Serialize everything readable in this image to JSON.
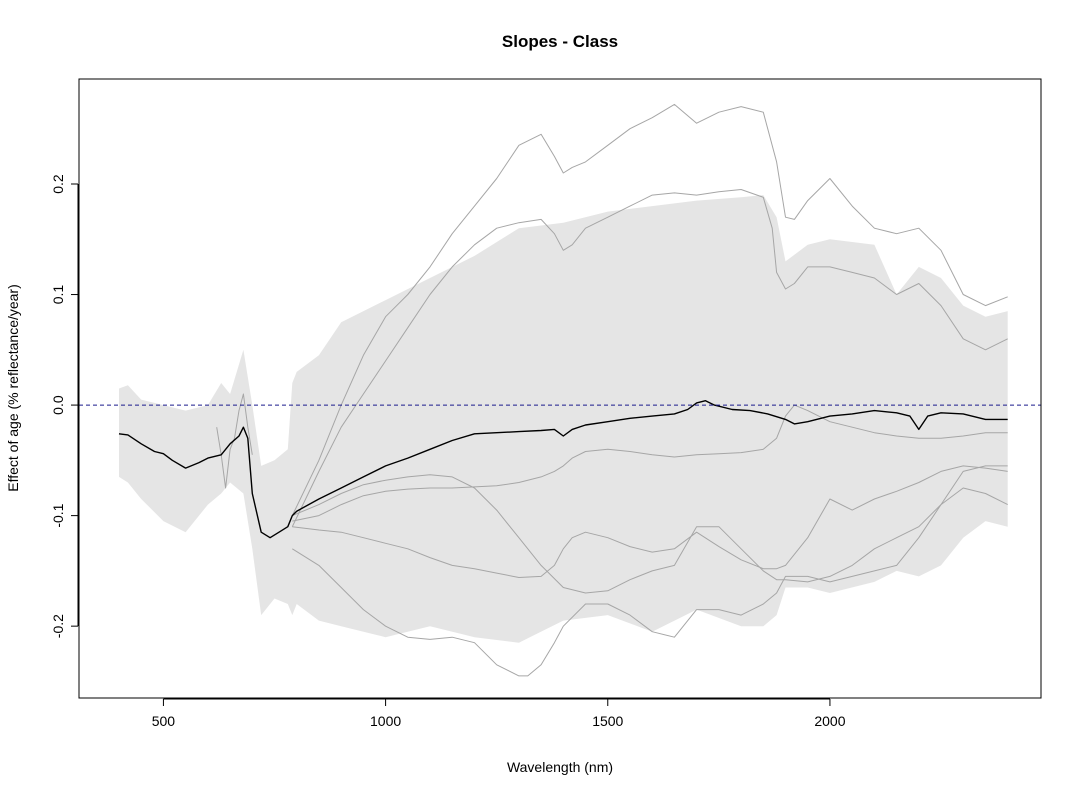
{
  "chart_data": {
    "type": "line",
    "title": "Slopes - Class",
    "xlabel": "Wavelength (nm)",
    "ylabel": "Effect of age (% reflectance/year)",
    "xlim": [
      310,
      2475
    ],
    "ylim": [
      -0.265,
      0.295
    ],
    "xticks": [
      500,
      1000,
      1500,
      2000
    ],
    "xtick_labels": [
      "500",
      "1000",
      "1500",
      "2000"
    ],
    "yticks": [
      -0.2,
      -0.1,
      0.0,
      0.1,
      0.2
    ],
    "ytick_labels": [
      "-0.2",
      "-0.1",
      "0.0",
      "0.1",
      "0.2"
    ],
    "reference_line": {
      "y": 0.0,
      "style": "dashed",
      "color": "#1a1a8c"
    },
    "colors": {
      "band": "#e5e5e5",
      "series": "#000000",
      "gray_lines": "#a6a6a6"
    },
    "band": {
      "name": "",
      "x": [
        400,
        420,
        450,
        500,
        550,
        600,
        630,
        650,
        680,
        700,
        720,
        750,
        780,
        790,
        800,
        850,
        900,
        1000,
        1100,
        1200,
        1300,
        1400,
        1500,
        1600,
        1700,
        1800,
        1850,
        1880,
        1900,
        1950,
        2000,
        2100,
        2150,
        2200,
        2250,
        2300,
        2350,
        2400
      ],
      "upper": [
        0.015,
        0.018,
        0.005,
        0.0,
        -0.005,
        0.0,
        0.02,
        0.01,
        0.05,
        0.0,
        -0.055,
        -0.05,
        -0.04,
        0.02,
        0.03,
        0.045,
        0.075,
        0.095,
        0.115,
        0.135,
        0.16,
        0.165,
        0.175,
        0.18,
        0.185,
        0.188,
        0.19,
        0.17,
        0.13,
        0.145,
        0.15,
        0.145,
        0.1,
        0.125,
        0.115,
        0.09,
        0.08,
        0.085
      ],
      "lower": [
        -0.065,
        -0.07,
        -0.085,
        -0.105,
        -0.115,
        -0.09,
        -0.08,
        -0.07,
        -0.08,
        -0.13,
        -0.19,
        -0.175,
        -0.18,
        -0.19,
        -0.18,
        -0.195,
        -0.2,
        -0.21,
        -0.2,
        -0.21,
        -0.215,
        -0.195,
        -0.19,
        -0.205,
        -0.185,
        -0.2,
        -0.2,
        -0.19,
        -0.165,
        -0.165,
        -0.17,
        -0.16,
        -0.15,
        -0.155,
        -0.145,
        -0.12,
        -0.105,
        -0.11
      ]
    },
    "series": [
      {
        "name": "",
        "color": "#000000",
        "x": [
          400,
          420,
          450,
          480,
          500,
          520,
          550,
          580,
          600,
          630,
          650,
          670,
          680,
          690,
          700,
          720,
          740,
          760,
          780,
          790,
          800,
          850,
          900,
          950,
          1000,
          1050,
          1100,
          1150,
          1200,
          1250,
          1300,
          1350,
          1380,
          1400,
          1420,
          1450,
          1500,
          1550,
          1600,
          1650,
          1680,
          1700,
          1720,
          1740,
          1780,
          1820,
          1860,
          1900,
          1920,
          1950,
          2000,
          2050,
          2100,
          2150,
          2180,
          2200,
          2220,
          2250,
          2300,
          2350,
          2400
        ],
        "y": [
          -0.026,
          -0.027,
          -0.035,
          -0.042,
          -0.044,
          -0.05,
          -0.057,
          -0.052,
          -0.048,
          -0.045,
          -0.035,
          -0.028,
          -0.02,
          -0.03,
          -0.08,
          -0.115,
          -0.12,
          -0.115,
          -0.11,
          -0.1,
          -0.096,
          -0.085,
          -0.075,
          -0.065,
          -0.055,
          -0.048,
          -0.04,
          -0.032,
          -0.026,
          -0.025,
          -0.024,
          -0.023,
          -0.022,
          -0.028,
          -0.022,
          -0.018,
          -0.015,
          -0.012,
          -0.01,
          -0.008,
          -0.004,
          0.002,
          0.004,
          0.0,
          -0.004,
          -0.005,
          -0.008,
          -0.013,
          -0.017,
          -0.015,
          -0.01,
          -0.008,
          -0.005,
          -0.007,
          -0.01,
          -0.022,
          -0.01,
          -0.007,
          -0.008,
          -0.013,
          -0.013
        ]
      },
      {
        "name": "",
        "color": "#a6a6a6",
        "x": [
          790,
          850,
          900,
          950,
          1000,
          1050,
          1100,
          1150,
          1200,
          1250,
          1300,
          1350,
          1380,
          1400,
          1420,
          1450,
          1500,
          1550,
          1600,
          1650,
          1700,
          1750,
          1800,
          1850,
          1880,
          1900,
          1920,
          1950,
          2000,
          2050,
          2100,
          2150,
          2200,
          2250,
          2300,
          2350,
          2400
        ],
        "y": [
          -0.1,
          -0.05,
          0.0,
          0.045,
          0.08,
          0.1,
          0.125,
          0.155,
          0.18,
          0.205,
          0.235,
          0.245,
          0.225,
          0.21,
          0.215,
          0.22,
          0.235,
          0.25,
          0.26,
          0.272,
          0.255,
          0.265,
          0.27,
          0.265,
          0.22,
          0.17,
          0.168,
          0.185,
          0.205,
          0.18,
          0.16,
          0.155,
          0.16,
          0.14,
          0.1,
          0.09,
          0.098
        ]
      },
      {
        "name": "",
        "color": "#a6a6a6",
        "x": [
          790,
          850,
          900,
          950,
          1000,
          1050,
          1100,
          1150,
          1200,
          1250,
          1300,
          1350,
          1380,
          1400,
          1420,
          1450,
          1500,
          1550,
          1600,
          1650,
          1700,
          1750,
          1800,
          1850,
          1870,
          1880,
          1900,
          1920,
          1950,
          2000,
          2050,
          2100,
          2150,
          2200,
          2250,
          2300,
          2350,
          2400
        ],
        "y": [
          -0.11,
          -0.06,
          -0.02,
          0.01,
          0.04,
          0.07,
          0.1,
          0.125,
          0.145,
          0.16,
          0.165,
          0.168,
          0.155,
          0.14,
          0.145,
          0.16,
          0.17,
          0.18,
          0.19,
          0.192,
          0.19,
          0.193,
          0.195,
          0.188,
          0.16,
          0.12,
          0.105,
          0.11,
          0.125,
          0.125,
          0.12,
          0.115,
          0.1,
          0.11,
          0.09,
          0.06,
          0.05,
          0.06
        ]
      },
      {
        "name": "",
        "color": "#a6a6a6",
        "x": [
          790,
          850,
          900,
          950,
          1000,
          1050,
          1100,
          1150,
          1200,
          1250,
          1300,
          1350,
          1380,
          1400,
          1420,
          1450,
          1500,
          1550,
          1600,
          1650,
          1700,
          1750,
          1800,
          1850,
          1880,
          1900,
          1920,
          1950,
          2000,
          2050,
          2100,
          2150,
          2200,
          2250,
          2300,
          2350,
          2400
        ],
        "y": [
          -0.105,
          -0.1,
          -0.09,
          -0.082,
          -0.078,
          -0.076,
          -0.075,
          -0.075,
          -0.074,
          -0.073,
          -0.07,
          -0.065,
          -0.06,
          -0.055,
          -0.048,
          -0.042,
          -0.04,
          -0.042,
          -0.045,
          -0.047,
          -0.045,
          -0.044,
          -0.043,
          -0.04,
          -0.03,
          -0.01,
          0.0,
          -0.005,
          -0.015,
          -0.02,
          -0.025,
          -0.028,
          -0.03,
          -0.03,
          -0.028,
          -0.025,
          -0.025
        ]
      },
      {
        "name": "",
        "color": "#a6a6a6",
        "x": [
          790,
          850,
          900,
          950,
          1000,
          1050,
          1100,
          1150,
          1200,
          1250,
          1300,
          1350,
          1400,
          1450,
          1500,
          1550,
          1600,
          1650,
          1700,
          1750,
          1800,
          1850,
          1880,
          1900,
          1950,
          2000,
          2050,
          2100,
          2150,
          2200,
          2250,
          2300,
          2350,
          2400
        ],
        "y": [
          -0.1,
          -0.09,
          -0.08,
          -0.072,
          -0.068,
          -0.065,
          -0.063,
          -0.065,
          -0.075,
          -0.095,
          -0.12,
          -0.145,
          -0.165,
          -0.17,
          -0.168,
          -0.158,
          -0.15,
          -0.145,
          -0.11,
          -0.11,
          -0.13,
          -0.15,
          -0.158,
          -0.158,
          -0.16,
          -0.155,
          -0.145,
          -0.13,
          -0.12,
          -0.11,
          -0.09,
          -0.06,
          -0.055,
          -0.055
        ]
      },
      {
        "name": "",
        "color": "#a6a6a6",
        "x": [
          790,
          850,
          900,
          950,
          1000,
          1050,
          1100,
          1150,
          1200,
          1250,
          1300,
          1350,
          1380,
          1400,
          1420,
          1450,
          1500,
          1550,
          1600,
          1650,
          1700,
          1750,
          1800,
          1850,
          1880,
          1900,
          1950,
          2000,
          2050,
          2100,
          2150,
          2200,
          2250,
          2300,
          2350,
          2400
        ],
        "y": [
          -0.11,
          -0.113,
          -0.115,
          -0.12,
          -0.125,
          -0.13,
          -0.138,
          -0.145,
          -0.148,
          -0.152,
          -0.156,
          -0.155,
          -0.145,
          -0.13,
          -0.12,
          -0.115,
          -0.12,
          -0.128,
          -0.133,
          -0.13,
          -0.115,
          -0.128,
          -0.14,
          -0.148,
          -0.148,
          -0.145,
          -0.12,
          -0.085,
          -0.095,
          -0.085,
          -0.078,
          -0.07,
          -0.06,
          -0.055,
          -0.057,
          -0.06
        ]
      },
      {
        "name": "",
        "color": "#a6a6a6",
        "x": [
          790,
          850,
          900,
          950,
          1000,
          1050,
          1100,
          1150,
          1200,
          1250,
          1300,
          1320,
          1350,
          1380,
          1400,
          1450,
          1500,
          1550,
          1600,
          1650,
          1700,
          1750,
          1800,
          1850,
          1880,
          1900,
          1950,
          2000,
          2050,
          2100,
          2150,
          2200,
          2250,
          2300,
          2350,
          2400
        ],
        "y": [
          -0.13,
          -0.145,
          -0.165,
          -0.185,
          -0.2,
          -0.21,
          -0.212,
          -0.21,
          -0.215,
          -0.235,
          -0.245,
          -0.245,
          -0.235,
          -0.215,
          -0.2,
          -0.18,
          -0.18,
          -0.19,
          -0.205,
          -0.21,
          -0.185,
          -0.185,
          -0.19,
          -0.18,
          -0.17,
          -0.155,
          -0.155,
          -0.16,
          -0.155,
          -0.15,
          -0.145,
          -0.12,
          -0.09,
          -0.075,
          -0.08,
          -0.09
        ]
      },
      {
        "name": "",
        "color": "#a6a6a6",
        "x": [
          620,
          630,
          640,
          650,
          660,
          670,
          680,
          690,
          700
        ],
        "y": [
          -0.02,
          -0.045,
          -0.075,
          -0.04,
          -0.03,
          -0.005,
          0.01,
          -0.02,
          -0.045
        ]
      }
    ]
  }
}
